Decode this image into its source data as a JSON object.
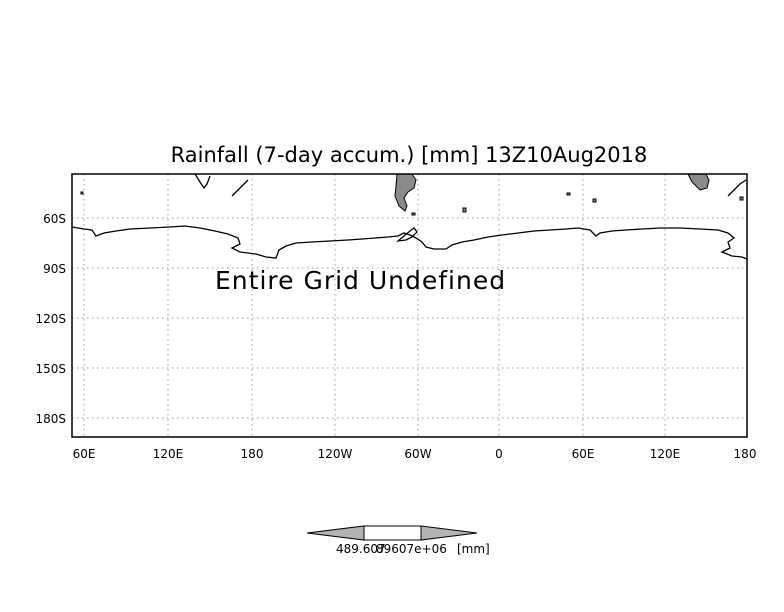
{
  "map": {
    "title": "Rainfall (7-day accum.) [mm] 13Z10Aug2018",
    "message": "Entire Grid Undefined",
    "lat_ticks": [
      "60S",
      "90S",
      "120S",
      "150S",
      "180S"
    ],
    "lon_ticks": [
      "60E",
      "120E",
      "180",
      "120W",
      "60W",
      "0",
      "60E",
      "120E",
      "180"
    ],
    "grid": true,
    "land_color": "#8a8a8a"
  },
  "colorbar": {
    "label": "489.6078960 7e+06[mm]",
    "label_parts": [
      "489.607",
      "89607e+06",
      "[mm]"
    ],
    "fill_colors": [
      "#b4b4b4",
      "#ffffff",
      "#b4b4b4"
    ]
  }
}
